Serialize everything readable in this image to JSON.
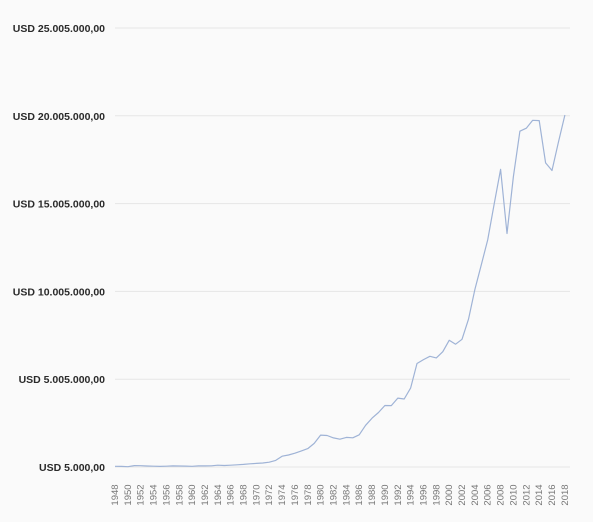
{
  "chart_data": {
    "type": "line",
    "title": "",
    "xlabel": "",
    "ylabel": "",
    "ylim": [
      5000,
      25005000
    ],
    "y_ticks": [
      {
        "value": 5000,
        "label": "USD 5.000,00"
      },
      {
        "value": 5005000,
        "label": "USD 5.005.000,00"
      },
      {
        "value": 10005000,
        "label": "USD 10.005.000,00"
      },
      {
        "value": 15005000,
        "label": "USD 15.005.000,00"
      },
      {
        "value": 20005000,
        "label": "USD 20.005.000,00"
      },
      {
        "value": 25005000,
        "label": "USD 25.005.000,00"
      }
    ],
    "x_ticks": [
      "1948",
      "1950",
      "1952",
      "1954",
      "1956",
      "1958",
      "1960",
      "1962",
      "1964",
      "1966",
      "1968",
      "1970",
      "1972",
      "1974",
      "1976",
      "1978",
      "1980",
      "1982",
      "1984",
      "1986",
      "1988",
      "1990",
      "1992",
      "1994",
      "1996",
      "1998",
      "2000",
      "2002",
      "2004",
      "2006",
      "2008",
      "2010",
      "2012",
      "2014",
      "2016",
      "2018"
    ],
    "grid": true,
    "colors": {
      "line": "#9fb3d6",
      "grid": "#e6e6e6"
    },
    "series": [
      {
        "x": [
          1948,
          1949,
          1950,
          1951,
          1952,
          1953,
          1954,
          1955,
          1956,
          1957,
          1958,
          1959,
          1960,
          1961,
          1962,
          1963,
          1964,
          1965,
          1966,
          1967,
          1968,
          1969,
          1970,
          1971,
          1972,
          1973,
          1974,
          1975,
          1976,
          1977,
          1978,
          1979,
          1980,
          1981,
          1982,
          1983,
          1984,
          1985,
          1986,
          1987,
          1988,
          1989,
          1990,
          1991,
          1992,
          1993,
          1994,
          1995,
          1996,
          1997,
          1998,
          1999,
          2000,
          2001,
          2002,
          2003,
          2004,
          2005,
          2006,
          2007,
          2008,
          2009,
          2010,
          2011,
          2012,
          2013,
          2014,
          2015,
          2016,
          2017,
          2018
        ],
        "values": [
          45000,
          40000,
          20000,
          85000,
          80000,
          60000,
          50000,
          40000,
          50000,
          70000,
          60000,
          55000,
          45000,
          65000,
          70000,
          75000,
          110000,
          90000,
          110000,
          130000,
          155000,
          185000,
          210000,
          230000,
          280000,
          380000,
          620000,
          690000,
          790000,
          920000,
          1050000,
          1350000,
          1820000,
          1800000,
          1660000,
          1590000,
          1690000,
          1670000,
          1840000,
          2380000,
          2790000,
          3110000,
          3510000,
          3500000,
          3930000,
          3880000,
          4500000,
          5900000,
          6120000,
          6310000,
          6220000,
          6570000,
          7220000,
          7000000,
          7280000,
          8420000,
          10120000,
          11520000,
          12940000,
          14990000,
          16950000,
          13300000,
          16550000,
          19130000,
          19300000,
          19750000,
          19730000,
          17320000,
          16890000,
          18500000,
          20050000
        ]
      }
    ]
  }
}
